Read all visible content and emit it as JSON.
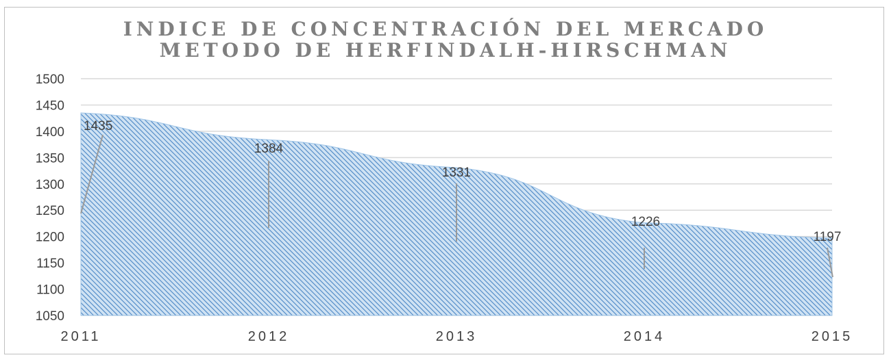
{
  "chart_data": {
    "type": "area",
    "title": "INDICE DE CONCENTRACIÓN DEL MERCADO",
    "subtitle": "METODO DE HERFINDALH-HIRSCHMAN",
    "categories": [
      "2011",
      "2012",
      "2013",
      "2014",
      "2015"
    ],
    "series": [
      {
        "values": [
          1435,
          1384,
          1331,
          1226,
          1197
        ]
      }
    ],
    "data_labels": [
      "1435",
      "1384",
      "1331",
      "1226",
      "1197"
    ],
    "ylim": [
      1050,
      1500
    ],
    "yticks": [
      "1050",
      "1100",
      "1150",
      "1200",
      "1250",
      "1300",
      "1350",
      "1400",
      "1450",
      "1500"
    ],
    "grid": true,
    "legend": "none",
    "fill_color": "#5b9bd5",
    "gridline_color": "#d9d9d9"
  }
}
